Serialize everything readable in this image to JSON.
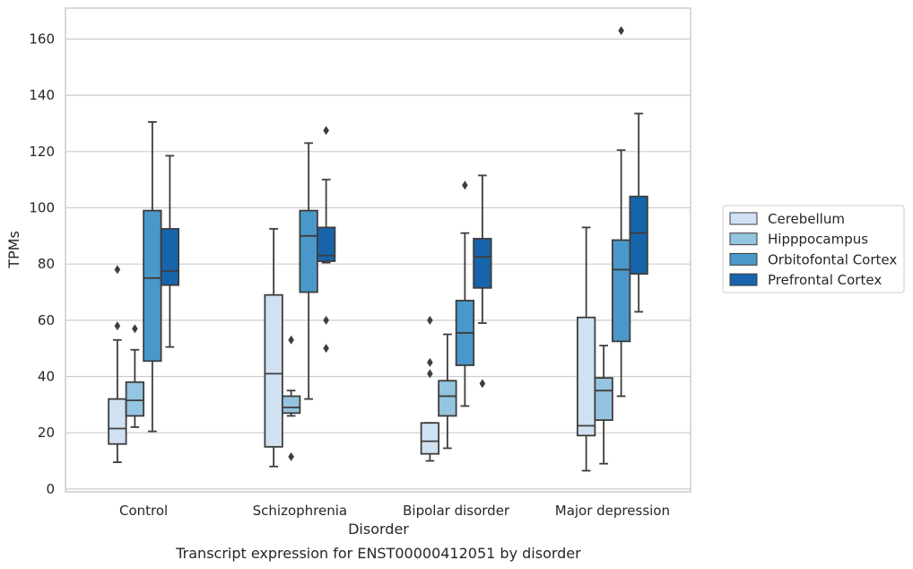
{
  "chart_data": {
    "type": "box",
    "xlabel": "Disorder",
    "ylabel": "TPMs",
    "caption": "Transcript expression for ENST00000412051 by disorder",
    "ylim": [
      -1,
      171
    ],
    "yticks": [
      0,
      20,
      40,
      60,
      80,
      100,
      120,
      140,
      160
    ],
    "grid": "horizontal",
    "legend_position": "right",
    "categories": [
      "Control",
      "Schizophrenia",
      "Bipolar disorder",
      "Major depression"
    ],
    "series": [
      {
        "name": "Cerebellum",
        "color": "#d0e1f2",
        "boxes": [
          {
            "whislo": 9.5,
            "q1": 16,
            "med": 21.5,
            "q3": 32,
            "whishi": 53,
            "fliers": [
              58,
              78
            ]
          },
          {
            "whislo": 8,
            "q1": 15,
            "med": 41,
            "q3": 69,
            "whishi": 92.5,
            "fliers": []
          },
          {
            "whislo": 10,
            "q1": 12.5,
            "med": 17,
            "q3": 23.5,
            "whishi": 23.5,
            "fliers": [
              41,
              45,
              60
            ]
          },
          {
            "whislo": 6.5,
            "q1": 19,
            "med": 22.5,
            "q3": 61,
            "whishi": 93,
            "fliers": []
          }
        ]
      },
      {
        "name": "Hipppocampus",
        "color": "#94c4df",
        "boxes": [
          {
            "whislo": 22,
            "q1": 26,
            "med": 31.5,
            "q3": 38,
            "whishi": 49.5,
            "fliers": [
              57
            ]
          },
          {
            "whislo": 26,
            "q1": 27,
            "med": 29,
            "q3": 33,
            "whishi": 35,
            "fliers": [
              11.5,
              53
            ]
          },
          {
            "whislo": 14.5,
            "q1": 26,
            "med": 33,
            "q3": 38.5,
            "whishi": 55,
            "fliers": []
          },
          {
            "whislo": 9,
            "q1": 24.5,
            "med": 35,
            "q3": 39.5,
            "whishi": 51,
            "fliers": []
          }
        ]
      },
      {
        "name": "Orbitofontal Cortex",
        "color": "#4a98c9",
        "boxes": [
          {
            "whislo": 20.5,
            "q1": 45.5,
            "med": 75,
            "q3": 99,
            "whishi": 130.5,
            "fliers": []
          },
          {
            "whislo": 32,
            "q1": 70,
            "med": 90,
            "q3": 99,
            "whishi": 123,
            "fliers": []
          },
          {
            "whislo": 29.5,
            "q1": 44,
            "med": 55.5,
            "q3": 67,
            "whishi": 91,
            "fliers": [
              108
            ]
          },
          {
            "whislo": 33,
            "q1": 52.5,
            "med": 78,
            "q3": 88.5,
            "whishi": 120.5,
            "fliers": [
              163
            ]
          }
        ]
      },
      {
        "name": "Prefrontal Cortex",
        "color": "#1764ab",
        "boxes": [
          {
            "whislo": 50.5,
            "q1": 72.5,
            "med": 77.5,
            "q3": 92.5,
            "whishi": 118.5,
            "fliers": []
          },
          {
            "whislo": 80.5,
            "q1": 81,
            "med": 83,
            "q3": 93,
            "whishi": 110,
            "fliers": [
              50,
              60,
              127.5
            ]
          },
          {
            "whislo": 59,
            "q1": 71.5,
            "med": 82.5,
            "q3": 89,
            "whishi": 111.5,
            "fliers": [
              37.5
            ]
          },
          {
            "whislo": 63,
            "q1": 76.5,
            "med": 91,
            "q3": 104,
            "whishi": 133.5,
            "fliers": []
          }
        ]
      }
    ]
  }
}
